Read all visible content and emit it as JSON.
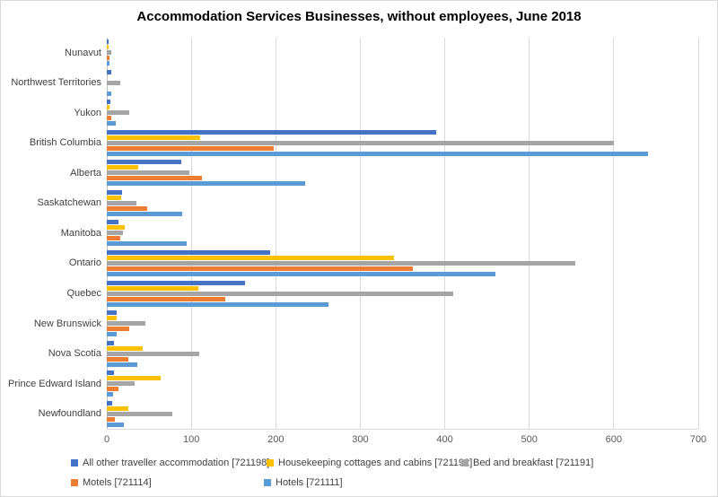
{
  "title": "Accommodation Services Businesses, without employees, June 2018",
  "chart_data": {
    "type": "bar",
    "orientation": "horizontal",
    "title": "Accommodation Services Businesses, without employees, June 2018",
    "xlabel": "",
    "ylabel": "",
    "xlim": [
      0,
      700
    ],
    "x_ticks": [
      0,
      100,
      200,
      300,
      400,
      500,
      600,
      700
    ],
    "grid": true,
    "legend_position": "bottom",
    "categories": [
      "Nunavut",
      "Northwest Territories",
      "Yukon",
      "British Columbia",
      "Alberta",
      "Saskatchewan",
      "Manitoba",
      "Ontario",
      "Quebec",
      "New Brunswick",
      "Nova Scotia",
      "Prince Edward Island",
      "Newfoundland"
    ],
    "series": [
      {
        "name": "All other traveller accommodation [721198]",
        "color": "#4472C4",
        "values": [
          2,
          5,
          4,
          390,
          88,
          18,
          14,
          193,
          164,
          12,
          8,
          9,
          6
        ]
      },
      {
        "name": "Housekeeping cottages and cabins [721192]",
        "color": "#FFC000",
        "values": [
          2,
          0,
          3,
          110,
          37,
          17,
          21,
          340,
          108,
          12,
          43,
          64,
          25
        ]
      },
      {
        "name": "Bed and breakfast [721191]",
        "color": "#A5A5A5",
        "values": [
          5,
          16,
          27,
          600,
          98,
          35,
          19,
          555,
          410,
          46,
          109,
          33,
          78
        ]
      },
      {
        "name": "Motels [721114]",
        "color": "#ED7D31",
        "values": [
          3,
          0,
          5,
          198,
          113,
          48,
          16,
          362,
          140,
          27,
          26,
          14,
          10
        ]
      },
      {
        "name": "Hotels [721111]",
        "color": "#5B9BD5",
        "values": [
          3,
          5,
          11,
          640,
          235,
          89,
          95,
          460,
          262,
          12,
          36,
          7,
          20
        ]
      }
    ]
  },
  "colors": {
    "gridline": "#D9D9D9",
    "axis_text": "#595959",
    "label_text": "#404040"
  }
}
